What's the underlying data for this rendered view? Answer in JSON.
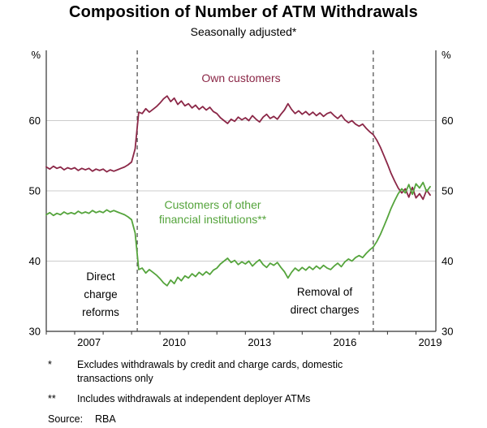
{
  "chart_data": {
    "type": "line",
    "title": "Composition of Number of ATM Withdrawals",
    "subtitle": "Seasonally adjusted*",
    "unit": "%",
    "xlim": [
      2006,
      2019.7
    ],
    "ylim": [
      30,
      70
    ],
    "y_ticks": [
      30,
      40,
      50,
      60
    ],
    "y_gridlines": [
      40,
      50,
      60
    ],
    "x_ticks": [
      2007,
      2010,
      2013,
      2016,
      2019
    ],
    "x_tick_label_offset": 0.5,
    "x_start": 2006.0,
    "x_step": 0.125,
    "grid": "horizontal",
    "legend_position": "on-chart-labels",
    "vlines": [
      {
        "x": 2009.2,
        "label_lines": [
          "Direct",
          "charge",
          "reforms"
        ]
      },
      {
        "x": 2017.5,
        "label_lines": [
          "Removal of",
          "direct charges"
        ]
      }
    ],
    "series": [
      {
        "name": "Own customers",
        "label_lines": [
          "Own customers"
        ],
        "color": "#8b2747",
        "values": [
          53.4,
          53.1,
          53.5,
          53.2,
          53.4,
          53.0,
          53.3,
          53.1,
          53.3,
          52.9,
          53.2,
          53.0,
          53.2,
          52.8,
          53.1,
          52.9,
          53.1,
          52.7,
          53.0,
          52.8,
          53.0,
          53.2,
          53.4,
          53.7,
          54.1,
          56.0,
          61.2,
          61.0,
          61.7,
          61.2,
          61.6,
          62.0,
          62.5,
          63.1,
          63.5,
          62.7,
          63.2,
          62.3,
          62.8,
          62.1,
          62.4,
          61.8,
          62.2,
          61.6,
          62.0,
          61.5,
          61.9,
          61.3,
          61.0,
          60.4,
          60.0,
          59.6,
          60.2,
          59.9,
          60.5,
          60.1,
          60.4,
          60.0,
          60.7,
          60.2,
          59.8,
          60.5,
          60.9,
          60.3,
          60.6,
          60.2,
          60.9,
          61.5,
          62.4,
          61.6,
          61.0,
          61.4,
          60.9,
          61.3,
          60.8,
          61.2,
          60.7,
          61.1,
          60.6,
          61.0,
          61.2,
          60.7,
          60.3,
          60.8,
          60.1,
          59.7,
          60.0,
          59.5,
          59.2,
          59.5,
          58.9,
          58.4,
          58.0,
          57.2,
          56.2,
          55.0,
          53.8,
          52.5,
          51.4,
          50.4,
          49.7,
          50.3,
          49.1,
          50.5,
          49.0,
          49.6,
          48.8,
          50.1,
          49.4
        ]
      },
      {
        "name": "Customers of other financial institutions**",
        "label_lines": [
          "Customers of other",
          "financial institutions**"
        ],
        "color": "#55a43c",
        "values": [
          46.6,
          46.9,
          46.5,
          46.8,
          46.6,
          47.0,
          46.7,
          46.9,
          46.7,
          47.1,
          46.8,
          47.0,
          46.8,
          47.2,
          46.9,
          47.1,
          46.9,
          47.3,
          47.0,
          47.2,
          47.0,
          46.8,
          46.6,
          46.3,
          45.9,
          44.0,
          38.8,
          39.0,
          38.3,
          38.8,
          38.4,
          38.0,
          37.5,
          36.9,
          36.5,
          37.3,
          36.8,
          37.7,
          37.2,
          37.9,
          37.6,
          38.2,
          37.8,
          38.4,
          38.0,
          38.5,
          38.1,
          38.7,
          39.0,
          39.6,
          40.0,
          40.4,
          39.8,
          40.1,
          39.5,
          39.9,
          39.6,
          40.0,
          39.3,
          39.8,
          40.2,
          39.5,
          39.1,
          39.7,
          39.4,
          39.8,
          39.1,
          38.5,
          37.6,
          38.4,
          39.0,
          38.6,
          39.1,
          38.7,
          39.2,
          38.8,
          39.3,
          38.9,
          39.4,
          39.0,
          38.8,
          39.3,
          39.7,
          39.2,
          39.9,
          40.3,
          40.0,
          40.5,
          40.8,
          40.5,
          41.1,
          41.6,
          42.0,
          42.8,
          43.8,
          45.0,
          46.2,
          47.5,
          48.6,
          49.6,
          50.3,
          49.7,
          50.9,
          49.5,
          51.0,
          50.4,
          51.2,
          49.9,
          50.6
        ]
      }
    ]
  },
  "footnotes": [
    {
      "marker": "*",
      "text": "Excludes withdrawals by credit and charge cards, domestic transactions only"
    },
    {
      "marker": "**",
      "text": "Includes withdrawals at independent deployer ATMs"
    }
  ],
  "source": {
    "label": "Source:",
    "value": "RBA"
  }
}
